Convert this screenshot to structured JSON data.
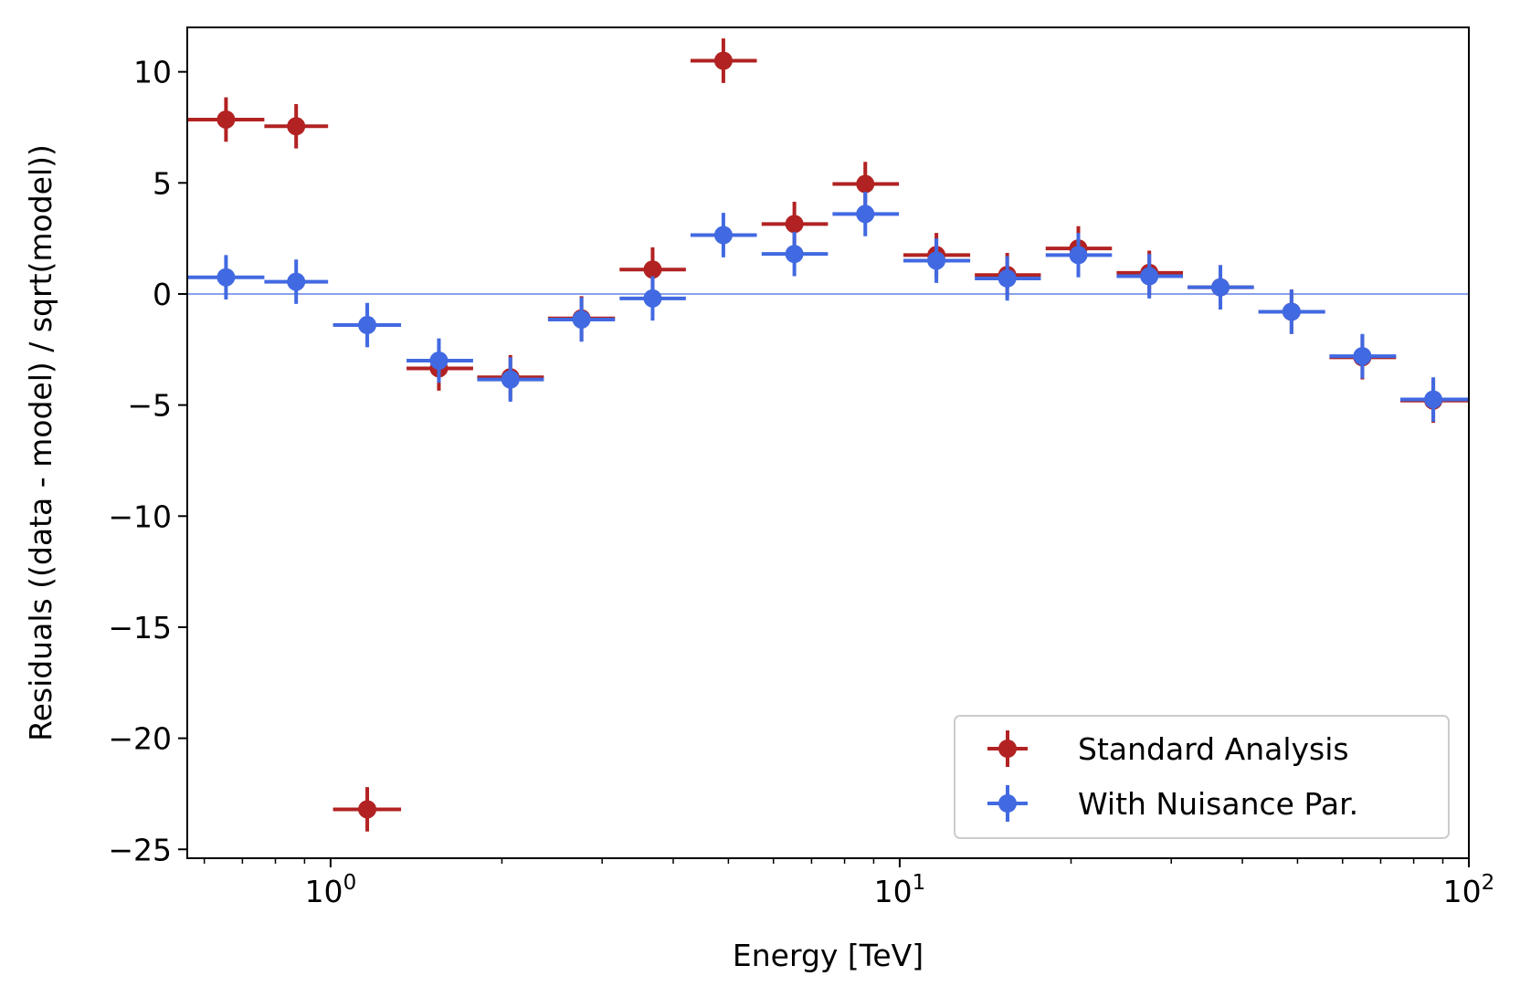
{
  "chart_data": {
    "type": "scatter",
    "xlabel": "Energy [TeV]",
    "ylabel": "Residuals ((data - model) / sqrt(model))",
    "xscale": "log",
    "xlim": [
      0.56,
      100
    ],
    "ylim": [
      -25.4,
      12.0
    ],
    "grid": false,
    "legend_position": "lower-right",
    "reference_line": {
      "y": 0,
      "color": "#4169e1"
    },
    "x_tick_labels": [
      {
        "value": 1,
        "base": "10",
        "exp": "0"
      },
      {
        "value": 10,
        "base": "10",
        "exp": "1"
      },
      {
        "value": 100,
        "base": "10",
        "exp": "2"
      }
    ],
    "y_ticks": [
      10,
      5,
      0,
      -5,
      -10,
      -15,
      -20,
      -25
    ],
    "y_tick_labels": [
      "10",
      "5",
      "0",
      "−5",
      "−10",
      "−15",
      "−20",
      "−25"
    ],
    "series": [
      {
        "name": "Standard Analysis",
        "color": "#b22222",
        "points": [
          {
            "x": 0.655,
            "y": 7.85,
            "x_lo": 0.56,
            "x_hi": 0.765,
            "yerr": 1.0
          },
          {
            "x": 0.87,
            "y": 7.55,
            "x_lo": 0.765,
            "x_hi": 0.99,
            "yerr": 1.0
          },
          {
            "x": 1.16,
            "y": -23.2,
            "x_lo": 1.01,
            "x_hi": 1.33,
            "yerr": 1.0
          },
          {
            "x": 1.55,
            "y": -3.35,
            "x_lo": 1.36,
            "x_hi": 1.78,
            "yerr": 1.0
          },
          {
            "x": 2.07,
            "y": -3.75,
            "x_lo": 1.81,
            "x_hi": 2.37,
            "yerr": 1.0
          },
          {
            "x": 2.76,
            "y": -1.1,
            "x_lo": 2.41,
            "x_hi": 3.16,
            "yerr": 1.0
          },
          {
            "x": 3.68,
            "y": 1.1,
            "x_lo": 3.22,
            "x_hi": 4.21,
            "yerr": 1.0
          },
          {
            "x": 4.9,
            "y": 10.5,
            "x_lo": 4.29,
            "x_hi": 5.61,
            "yerr": 1.0
          },
          {
            "x": 6.53,
            "y": 3.15,
            "x_lo": 5.72,
            "x_hi": 7.48,
            "yerr": 1.0
          },
          {
            "x": 8.7,
            "y": 4.95,
            "x_lo": 7.62,
            "x_hi": 9.97,
            "yerr": 1.0
          },
          {
            "x": 11.6,
            "y": 1.75,
            "x_lo": 10.15,
            "x_hi": 13.3,
            "yerr": 1.0
          },
          {
            "x": 15.45,
            "y": 0.85,
            "x_lo": 13.55,
            "x_hi": 17.7,
            "yerr": 1.0
          },
          {
            "x": 20.6,
            "y": 2.05,
            "x_lo": 18.05,
            "x_hi": 23.6,
            "yerr": 1.0
          },
          {
            "x": 27.45,
            "y": 0.95,
            "x_lo": 24.05,
            "x_hi": 31.45,
            "yerr": 1.0
          },
          {
            "x": 36.6,
            "y": 0.3,
            "x_lo": 32.05,
            "x_hi": 41.9,
            "yerr": 1.0
          },
          {
            "x": 48.8,
            "y": -0.8,
            "x_lo": 42.7,
            "x_hi": 55.9,
            "yerr": 1.0
          },
          {
            "x": 65.0,
            "y": -2.85,
            "x_lo": 56.9,
            "x_hi": 74.5,
            "yerr": 1.0
          },
          {
            "x": 86.6,
            "y": -4.8,
            "x_lo": 75.8,
            "x_hi": 100.0,
            "yerr": 1.0
          }
        ]
      },
      {
        "name": "With Nuisance Par.",
        "color": "#4169e1",
        "points": [
          {
            "x": 0.655,
            "y": 0.75,
            "x_lo": 0.56,
            "x_hi": 0.765,
            "yerr": 1.0
          },
          {
            "x": 0.87,
            "y": 0.55,
            "x_lo": 0.765,
            "x_hi": 0.99,
            "yerr": 1.0
          },
          {
            "x": 1.16,
            "y": -1.4,
            "x_lo": 1.01,
            "x_hi": 1.33,
            "yerr": 1.0
          },
          {
            "x": 1.55,
            "y": -3.0,
            "x_lo": 1.36,
            "x_hi": 1.78,
            "yerr": 1.0
          },
          {
            "x": 2.07,
            "y": -3.85,
            "x_lo": 1.81,
            "x_hi": 2.37,
            "yerr": 1.0
          },
          {
            "x": 2.76,
            "y": -1.15,
            "x_lo": 2.41,
            "x_hi": 3.16,
            "yerr": 1.0
          },
          {
            "x": 3.68,
            "y": -0.2,
            "x_lo": 3.22,
            "x_hi": 4.21,
            "yerr": 1.0
          },
          {
            "x": 4.9,
            "y": 2.65,
            "x_lo": 4.29,
            "x_hi": 5.61,
            "yerr": 1.0
          },
          {
            "x": 6.53,
            "y": 1.8,
            "x_lo": 5.72,
            "x_hi": 7.48,
            "yerr": 1.0
          },
          {
            "x": 8.7,
            "y": 3.6,
            "x_lo": 7.62,
            "x_hi": 9.97,
            "yerr": 1.0
          },
          {
            "x": 11.6,
            "y": 1.5,
            "x_lo": 10.15,
            "x_hi": 13.3,
            "yerr": 1.0
          },
          {
            "x": 15.45,
            "y": 0.7,
            "x_lo": 13.55,
            "x_hi": 17.7,
            "yerr": 1.0
          },
          {
            "x": 20.6,
            "y": 1.75,
            "x_lo": 18.05,
            "x_hi": 23.6,
            "yerr": 1.0
          },
          {
            "x": 27.45,
            "y": 0.8,
            "x_lo": 24.05,
            "x_hi": 31.45,
            "yerr": 1.0
          },
          {
            "x": 36.6,
            "y": 0.3,
            "x_lo": 32.05,
            "x_hi": 41.9,
            "yerr": 1.0
          },
          {
            "x": 48.8,
            "y": -0.8,
            "x_lo": 42.7,
            "x_hi": 55.9,
            "yerr": 1.0
          },
          {
            "x": 65.0,
            "y": -2.8,
            "x_lo": 56.9,
            "x_hi": 74.5,
            "yerr": 1.0
          },
          {
            "x": 86.6,
            "y": -4.75,
            "x_lo": 75.8,
            "x_hi": 100.0,
            "yerr": 1.0
          }
        ]
      }
    ]
  }
}
